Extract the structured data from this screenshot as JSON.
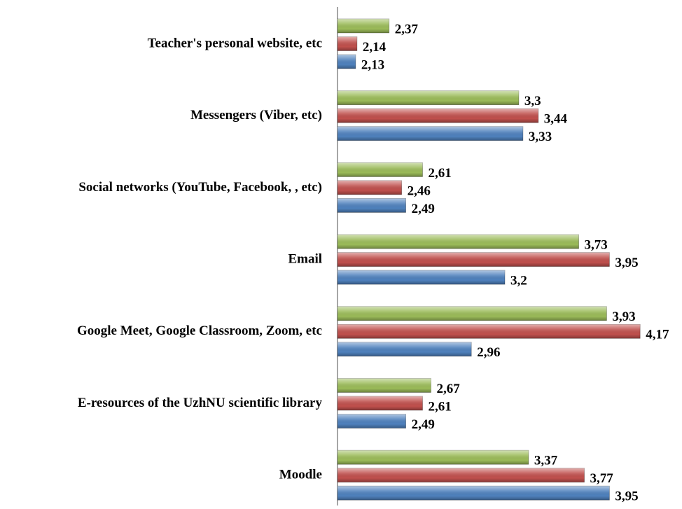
{
  "chart_data": {
    "type": "barh",
    "categories": [
      "Teacher's personal website, etc",
      "Messengers (Viber, etc)",
      "Social networks (YouTube, Facebook, , etc)",
      "Email",
      "Google Meet, Google Classroom, Zoom, etc",
      "E-resources of the UzhNU scientific library",
      "Moodle"
    ],
    "series": [
      {
        "color": "#9bbb59",
        "values": [
          2.37,
          3.3,
          2.61,
          3.73,
          3.93,
          2.67,
          3.37
        ],
        "value_labels": [
          "2,37",
          "3,3",
          "2,61",
          "3,73",
          "3,93",
          "2,67",
          "3,37"
        ]
      },
      {
        "color": "#c0504d",
        "values": [
          2.14,
          3.44,
          2.46,
          3.95,
          4.17,
          2.61,
          3.77
        ],
        "value_labels": [
          "2,14",
          "3,44",
          "2,46",
          "3,95",
          "4,17",
          "2,61",
          "3,77"
        ]
      },
      {
        "color": "#4f81bd",
        "values": [
          2.13,
          3.33,
          2.49,
          3.2,
          2.96,
          2.49,
          3.95
        ],
        "value_labels": [
          "2,13",
          "3,33",
          "2,49",
          "3,2",
          "2,96",
          "2,49",
          "3,95"
        ]
      }
    ],
    "xlim": [
      2,
      4.4
    ]
  }
}
